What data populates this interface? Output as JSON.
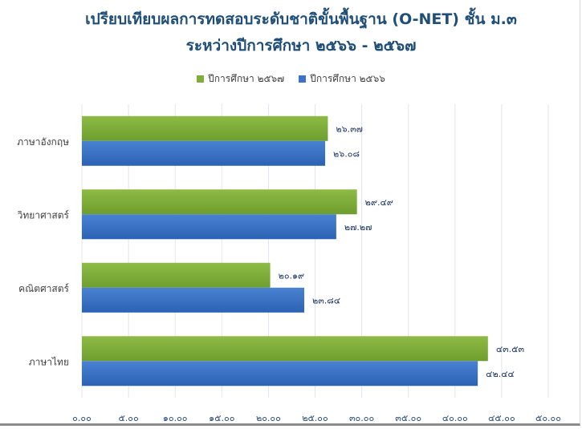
{
  "chart_data": {
    "type": "bar",
    "orientation": "horizontal",
    "title": "เปรียบเทียบผลการทดสอบระดับชาติขั้นพื้นฐาน (O-NET) ชั้น ม.๓",
    "subtitle": "ระหว่างปีการศึกษา ๒๕๖๖ - ๒๕๖๗",
    "categories": [
      "ภาษาอังกฤษ",
      "วิทยาศาสตร์",
      "คณิตศาสตร์",
      "ภาษาไทย"
    ],
    "series": [
      {
        "name": "ปีการศึกษา ๒๕๖๗",
        "color": "#7fae3b",
        "values": [
          26.37,
          29.49,
          20.19,
          43.53
        ],
        "labels": [
          "๒๖.๓๗",
          "๒๙.๔๙",
          "๒๐.๑๙",
          "๔๓.๕๓"
        ]
      },
      {
        "name": "ปีการศึกษา ๒๕๖๖",
        "color": "#3a72c4",
        "values": [
          26.08,
          27.27,
          23.84,
          42.44
        ],
        "labels": [
          "๒๖.๐๘",
          "๒๗.๒๗",
          "๒๓.๘๔",
          "๔๒.๔๔"
        ]
      }
    ],
    "xlim": [
      0,
      50
    ],
    "x_ticks": [
      0,
      5,
      10,
      15,
      20,
      25,
      30,
      35,
      40,
      45,
      50
    ],
    "x_tick_labels": [
      "๐.๐๐",
      "๕.๐๐",
      "๑๐.๐๐",
      "๑๕.๐๐",
      "๒๐.๐๐",
      "๒๕.๐๐",
      "๓๐.๐๐",
      "๓๕.๐๐",
      "๔๐.๐๐",
      "๔๕.๐๐",
      "๕๐.๐๐"
    ],
    "grid": true,
    "legend_position": "top"
  }
}
